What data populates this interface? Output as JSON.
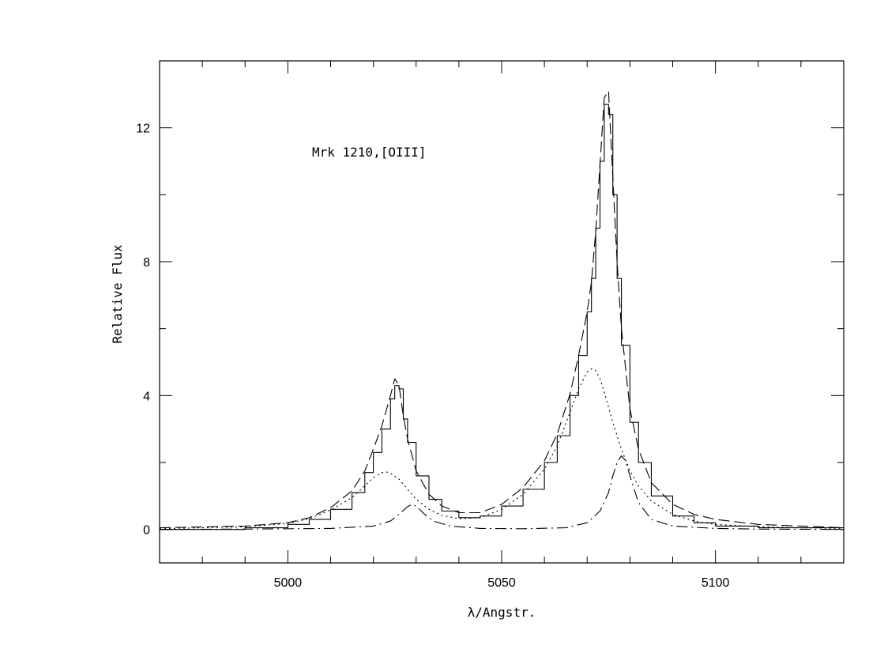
{
  "chart_data": {
    "type": "line",
    "title": "",
    "annotation": "Mrk  1210,[OIII]",
    "xlabel": "λ/Angstr.",
    "ylabel": "Relative Flux",
    "xlim": [
      4970,
      5130
    ],
    "ylim": [
      -1,
      14
    ],
    "xticks": [
      5000,
      5050,
      5100
    ],
    "yticks": [
      0,
      4,
      8,
      12
    ],
    "grid": false,
    "legend": "none",
    "series": [
      {
        "style": "solid-step",
        "x": [
          4970,
          4990,
          5000,
          5005,
          5010,
          5015,
          5018,
          5020,
          5022,
          5024,
          5025,
          5026,
          5027,
          5028,
          5030,
          5033,
          5036,
          5040,
          5045,
          5050,
          5055,
          5060,
          5063,
          5066,
          5068,
          5070,
          5071,
          5072,
          5073,
          5074,
          5075,
          5076,
          5077,
          5078,
          5080,
          5082,
          5085,
          5090,
          5095,
          5100,
          5110,
          5120,
          5130
        ],
        "y": [
          0.0,
          0.05,
          0.15,
          0.3,
          0.6,
          1.1,
          1.7,
          2.3,
          3.0,
          3.9,
          4.3,
          4.2,
          3.3,
          2.6,
          1.6,
          0.9,
          0.55,
          0.35,
          0.4,
          0.7,
          1.2,
          2.0,
          2.8,
          4.0,
          5.2,
          6.5,
          7.5,
          9.0,
          11.0,
          12.7,
          12.4,
          10.0,
          7.5,
          5.5,
          3.2,
          2.0,
          1.0,
          0.4,
          0.2,
          0.1,
          0.05,
          0.05,
          0.0
        ]
      },
      {
        "style": "dashed",
        "x": [
          4970,
          4990,
          5000,
          5005,
          5010,
          5015,
          5018,
          5020,
          5022,
          5024,
          5025,
          5026,
          5027,
          5028,
          5030,
          5033,
          5036,
          5040,
          5045,
          5050,
          5055,
          5060,
          5063,
          5066,
          5068,
          5070,
          5071,
          5072,
          5073,
          5074,
          5075,
          5076,
          5077,
          5078,
          5080,
          5082,
          5085,
          5090,
          5095,
          5100,
          5110,
          5120,
          5130
        ],
        "y": [
          0.05,
          0.1,
          0.2,
          0.35,
          0.65,
          1.15,
          1.75,
          2.4,
          3.1,
          4.0,
          4.5,
          4.3,
          3.4,
          2.7,
          1.75,
          1.05,
          0.7,
          0.5,
          0.5,
          0.75,
          1.25,
          2.05,
          2.85,
          4.05,
          5.2,
          6.5,
          7.4,
          8.9,
          10.9,
          12.9,
          13.1,
          10.5,
          8.0,
          6.0,
          3.6,
          2.4,
          1.4,
          0.75,
          0.45,
          0.3,
          0.15,
          0.1,
          0.05
        ]
      },
      {
        "style": "dotted",
        "x": [
          4970,
          4990,
          5000,
          5005,
          5010,
          5015,
          5018,
          5020,
          5022,
          5023,
          5024,
          5026,
          5028,
          5030,
          5033,
          5036,
          5040,
          5045,
          5050,
          5055,
          5060,
          5063,
          5066,
          5068,
          5070,
          5071,
          5072,
          5073,
          5074,
          5076,
          5078,
          5080,
          5082,
          5085,
          5090,
          5095,
          5100,
          5110,
          5120,
          5130
        ],
        "y": [
          0.02,
          0.08,
          0.18,
          0.32,
          0.58,
          0.95,
          1.3,
          1.55,
          1.7,
          1.72,
          1.68,
          1.5,
          1.2,
          0.9,
          0.6,
          0.42,
          0.32,
          0.35,
          0.6,
          1.05,
          1.8,
          2.5,
          3.5,
          4.2,
          4.7,
          4.8,
          4.75,
          4.5,
          4.1,
          3.2,
          2.4,
          1.75,
          1.3,
          0.85,
          0.45,
          0.25,
          0.15,
          0.08,
          0.05,
          0.03
        ]
      },
      {
        "style": "dash-dot",
        "x": [
          4970,
          4990,
          5010,
          5020,
          5024,
          5026,
          5028,
          5029,
          5030,
          5032,
          5034,
          5038,
          5045,
          5055,
          5065,
          5070,
          5073,
          5075,
          5076,
          5077,
          5078,
          5079,
          5080,
          5082,
          5085,
          5090,
          5100,
          5110,
          5130
        ],
        "y": [
          0.0,
          0.01,
          0.03,
          0.1,
          0.25,
          0.45,
          0.68,
          0.75,
          0.7,
          0.45,
          0.25,
          0.1,
          0.03,
          0.02,
          0.05,
          0.2,
          0.55,
          1.1,
          1.6,
          2.0,
          2.2,
          2.05,
          1.6,
          0.8,
          0.3,
          0.1,
          0.03,
          0.01,
          0.0
        ]
      }
    ]
  }
}
